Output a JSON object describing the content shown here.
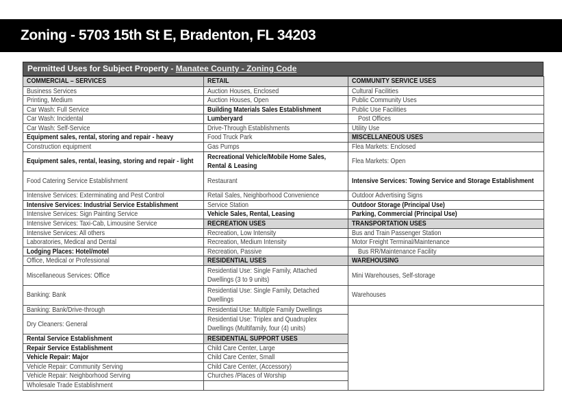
{
  "banner": {
    "title": "Zoning - 5703 15th St E, Bradenton, FL 34203"
  },
  "table": {
    "title_prefix": "Permitted Uses for Subject Property",
    "title_separator": " - ",
    "title_link": "Manatee County - Zoning Code",
    "columns": [
      "COMMERCIAL – SERVICES",
      "RETAIL",
      "COMMUNITY SERVICE USES"
    ],
    "rows": [
      {
        "cells": [
          {
            "t": "Business Services",
            "s": "normal"
          },
          {
            "t": "Auction Houses, Enclosed",
            "s": "normal"
          },
          {
            "t": "Cultural Facilities",
            "s": "normal"
          }
        ]
      },
      {
        "cells": [
          {
            "t": "Printing, Medium",
            "s": "normal"
          },
          {
            "t": "Auction Houses, Open",
            "s": "normal"
          },
          {
            "t": "Public Community Uses",
            "s": "normal"
          }
        ]
      },
      {
        "cells": [
          {
            "t": "Car Wash: Full Service",
            "s": "normal"
          },
          {
            "t": "Building Materials Sales Establishment",
            "s": "bold"
          },
          {
            "t": "Public Use Facilities",
            "s": "normal"
          }
        ]
      },
      {
        "cells": [
          {
            "t": "Car Wash: Incidental",
            "s": "normal"
          },
          {
            "t": "Lumberyard",
            "s": "bold"
          },
          {
            "t": "Post Offices",
            "s": "indent"
          }
        ]
      },
      {
        "cells": [
          {
            "t": "Car Wash: Self-Service",
            "s": "normal"
          },
          {
            "t": "Drive-Through Establishments",
            "s": "normal"
          },
          {
            "t": "Utility Use",
            "s": "normal"
          }
        ]
      },
      {
        "cells": [
          {
            "t": "Equipment sales, rental, storing and repair - heavy",
            "s": "bold"
          },
          {
            "t": "Food Truck Park",
            "s": "normal"
          },
          {
            "t": "MISCELLANEOUS USES",
            "s": "header"
          }
        ]
      },
      {
        "cells": [
          {
            "t": "Construction equipment",
            "s": "normal"
          },
          {
            "t": "Gas Pumps",
            "s": "normal"
          },
          {
            "t": "Flea Markets: Enclosed",
            "s": "normal"
          }
        ]
      },
      {
        "tall": true,
        "cells": [
          {
            "t": "Equipment sales, rental, leasing, storing and repair - light",
            "s": "bold"
          },
          {
            "t": "Recreational Vehicle/Mobile Home Sales, Rental & Leasing",
            "s": "bold"
          },
          {
            "t": "Flea Markets: Open",
            "s": "normal"
          }
        ]
      },
      {
        "tall": true,
        "cells": [
          {
            "t": "Food Catering Service Establishment",
            "s": "normal"
          },
          {
            "t": "Restaurant",
            "s": "normal"
          },
          {
            "t": "Intensive Services: Towing Service and Storage Establishment",
            "s": "bold"
          }
        ]
      },
      {
        "cells": [
          {
            "t": "Intensive Services: Exterminating and Pest Control",
            "s": "normal"
          },
          {
            "t": "Retail Sales, Neighborhood Convenience",
            "s": "normal"
          },
          {
            "t": "Outdoor Advertising Signs",
            "s": "normal"
          }
        ]
      },
      {
        "cells": [
          {
            "t": "Intensive Services: Industrial Service Establishment",
            "s": "bold"
          },
          {
            "t": "Service Station",
            "s": "normal"
          },
          {
            "t": "Outdoor Storage (Principal Use)",
            "s": "bold"
          }
        ]
      },
      {
        "cells": [
          {
            "t": "Intensive Services: Sign Painting Service",
            "s": "normal"
          },
          {
            "t": "Vehicle Sales, Rental, Leasing",
            "s": "bold"
          },
          {
            "t": "Parking, Commercial (Principal Use)",
            "s": "bold"
          }
        ]
      },
      {
        "cells": [
          {
            "t": "Intensive Services: Taxi-Cab, Limousine Service",
            "s": "normal"
          },
          {
            "t": "RECREATION USES",
            "s": "header"
          },
          {
            "t": "TRANSPORTATION USES",
            "s": "header"
          }
        ]
      },
      {
        "cells": [
          {
            "t": "Intensive Services: All others",
            "s": "normal"
          },
          {
            "t": "Recreation, Low Intensity",
            "s": "normal"
          },
          {
            "t": "Bus and Train Passenger Station",
            "s": "normal"
          }
        ]
      },
      {
        "cells": [
          {
            "t": "Laboratories, Medical and Dental",
            "s": "normal"
          },
          {
            "t": "Recreation, Medium Intensity",
            "s": "normal"
          },
          {
            "t": "Motor Freight Terminal/Maintenance",
            "s": "normal"
          }
        ]
      },
      {
        "cells": [
          {
            "t": "Lodging Places: Hotel/motel",
            "s": "bold"
          },
          {
            "t": "Recreation, Passive",
            "s": "normal"
          },
          {
            "t": "Bus RR/Maintenance Facility",
            "s": "indent"
          }
        ]
      },
      {
        "cells": [
          {
            "t": "Office, Medical or Professional",
            "s": "normal"
          },
          {
            "t": "RESIDENTIAL USES",
            "s": "header"
          },
          {
            "t": "WAREHOUSING",
            "s": "header"
          }
        ]
      },
      {
        "tall": true,
        "cells": [
          {
            "t": "Miscellaneous Services: Office",
            "s": "normal"
          },
          {
            "t": "Residential Use: Single Family, Attached Dwellings (3 to 9 units)",
            "s": "normal"
          },
          {
            "t": "Mini Warehouses, Self-storage",
            "s": "normal"
          }
        ]
      },
      {
        "tall": true,
        "cells": [
          {
            "t": "Banking: Bank",
            "s": "normal"
          },
          {
            "t": "Residential Use: Single Family, Detached Dwellings",
            "s": "normal"
          },
          {
            "t": "Warehouses",
            "s": "normal"
          }
        ]
      },
      {
        "cells": [
          {
            "t": "Banking: Bank/Drive-through",
            "s": "normal"
          },
          {
            "t": "Residential Use: Multiple Family Dwellings",
            "s": "normal"
          },
          {
            "t": "",
            "s": "empty",
            "rs": 8
          }
        ]
      },
      {
        "tall": true,
        "cells": [
          {
            "t": "Dry Cleaners: General",
            "s": "normal"
          },
          {
            "t": "Residential Use: Triplex and Quadruplex Dwellings (Multifamily, four (4) units)",
            "s": "normal"
          },
          null
        ]
      },
      {
        "cells": [
          {
            "t": "Rental Service Establishment",
            "s": "bold"
          },
          {
            "t": "RESIDENTIAL SUPPORT USES",
            "s": "header"
          },
          null
        ]
      },
      {
        "cells": [
          {
            "t": "Repair Service Establishment",
            "s": "bold"
          },
          {
            "t": "Child Care Center, Large",
            "s": "normal"
          },
          null
        ]
      },
      {
        "cells": [
          {
            "t": "Vehicle Repair: Major",
            "s": "bold"
          },
          {
            "t": "Child Care Center, Small",
            "s": "normal"
          },
          null
        ]
      },
      {
        "cells": [
          {
            "t": "Vehicle Repair: Community Serving",
            "s": "normal"
          },
          {
            "t": "Child Care Center, (Accessory)",
            "s": "normal"
          },
          null
        ]
      },
      {
        "cells": [
          {
            "t": "Vehicle Repair: Neighborhood Serving",
            "s": "normal"
          },
          {
            "t": "Churches /Places of Worship",
            "s": "normal"
          },
          null
        ]
      },
      {
        "cells": [
          {
            "t": "Wholesale Trade Establishment",
            "s": "normal"
          },
          {
            "t": "",
            "s": "empty"
          },
          null
        ]
      }
    ],
    "colors": {
      "banner_bg": "#000000",
      "banner_text": "#ffffff",
      "title_bar_bg": "#595959",
      "title_bar_text": "#ffffff",
      "section_header_bg": "#d6d6d6",
      "border": "#4a4a4a",
      "body_text": "#3d3d3d",
      "bold_text": "#111111"
    }
  }
}
